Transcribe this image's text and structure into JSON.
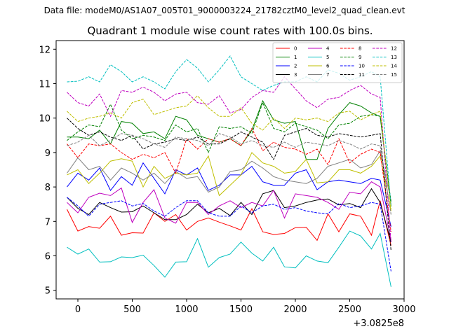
{
  "suptitle": "Data file: modeM0/AS1A07_005T01_9000003224_21782cztM0_level2_quad_clean.evt",
  "chart_data": {
    "type": "line",
    "title": "Quadrant 1 module wise count rates with 100.0s bins.",
    "x_offset_label": "+3.0825e8",
    "xlim": [
      -200,
      3000
    ],
    "ylim": [
      4.75,
      12.25
    ],
    "xticks": [
      0,
      500,
      1000,
      1500,
      2000,
      2500,
      3000
    ],
    "yticks": [
      5,
      6,
      7,
      8,
      9,
      10,
      11,
      12
    ],
    "x": [
      -100,
      0,
      100,
      200,
      300,
      400,
      500,
      600,
      700,
      800,
      900,
      1000,
      1100,
      1200,
      1300,
      1400,
      1500,
      1600,
      1700,
      1800,
      1900,
      2000,
      2100,
      2200,
      2300,
      2400,
      2500,
      2600,
      2700,
      2780,
      2880
    ],
    "legend_location": "upper right",
    "series": [
      {
        "name": "0",
        "color": "#ff0000",
        "dash": "solid",
        "values": [
          7.35,
          6.72,
          6.85,
          6.8,
          7.15,
          6.6,
          6.67,
          6.66,
          7.25,
          7.0,
          7.2,
          6.75,
          7.0,
          7.1,
          6.98,
          6.87,
          6.75,
          7.37,
          6.7,
          6.62,
          6.65,
          6.82,
          6.83,
          6.45,
          7.22,
          6.7,
          7.22,
          7.15,
          6.6,
          7.6,
          6.3
        ]
      },
      {
        "name": "1",
        "color": "#008000",
        "dash": "solid",
        "values": [
          9.45,
          9.45,
          9.4,
          9.65,
          9.25,
          9.9,
          9.85,
          9.55,
          9.6,
          9.4,
          10.05,
          9.95,
          9.5,
          9.4,
          9.3,
          9.4,
          9.2,
          9.65,
          10.5,
          9.95,
          9.85,
          9.9,
          8.8,
          8.8,
          9.7,
          10.1,
          10.45,
          10.35,
          10.15,
          10.05,
          7.45
        ]
      },
      {
        "name": "2",
        "color": "#0000ff",
        "dash": "solid",
        "values": [
          8.0,
          8.4,
          8.2,
          8.55,
          7.9,
          8.3,
          8.05,
          8.7,
          8.25,
          7.8,
          8.5,
          8.35,
          8.55,
          7.9,
          8.05,
          8.35,
          8.35,
          8.6,
          8.15,
          8.05,
          8.05,
          8.4,
          8.5,
          7.92,
          8.15,
          8.2,
          8.15,
          8.1,
          8.25,
          8.2,
          6.85
        ]
      },
      {
        "name": "3",
        "color": "#000000",
        "dash": "solid",
        "values": [
          7.7,
          7.38,
          7.2,
          7.55,
          7.4,
          7.27,
          7.28,
          7.45,
          7.25,
          7.05,
          7.05,
          7.2,
          7.5,
          7.25,
          7.38,
          7.17,
          7.55,
          7.2,
          7.8,
          7.9,
          7.4,
          7.45,
          7.55,
          7.62,
          7.65,
          7.48,
          7.52,
          7.4,
          7.95,
          7.55,
          6.4
        ]
      },
      {
        "name": "4",
        "color": "#bf00bf",
        "dash": "solid",
        "values": [
          7.55,
          7.25,
          7.7,
          7.82,
          7.75,
          7.97,
          6.97,
          7.55,
          7.92,
          7.1,
          6.95,
          7.55,
          7.55,
          7.2,
          7.45,
          7.6,
          7.4,
          7.55,
          7.45,
          7.9,
          7.1,
          7.8,
          7.75,
          7.7,
          7.55,
          7.35,
          7.85,
          7.8,
          8.15,
          8.0,
          6.45
        ]
      },
      {
        "name": "5",
        "color": "#00bfbf",
        "dash": "solid",
        "values": [
          6.25,
          6.05,
          6.2,
          5.82,
          5.83,
          5.97,
          5.95,
          6.02,
          5.72,
          5.38,
          5.82,
          5.83,
          6.5,
          5.67,
          5.95,
          6.05,
          6.4,
          6.08,
          5.85,
          6.25,
          5.68,
          5.65,
          6.0,
          5.85,
          5.8,
          6.25,
          6.72,
          6.58,
          6.2,
          6.65,
          5.1
        ]
      },
      {
        "name": "6",
        "color": "#bfbf00",
        "dash": "solid",
        "values": [
          8.35,
          8.5,
          8.1,
          8.4,
          8.75,
          8.82,
          8.75,
          8.0,
          8.6,
          8.25,
          8.4,
          8.35,
          8.4,
          8.9,
          7.75,
          8.05,
          8.35,
          9.0,
          8.7,
          8.6,
          8.4,
          8.45,
          8.8,
          8.12,
          8.15,
          8.5,
          8.5,
          8.4,
          8.6,
          8.9,
          7.3
        ]
      },
      {
        "name": "7",
        "color": "#808080",
        "dash": "solid",
        "values": [
          8.4,
          8.85,
          8.5,
          8.6,
          8.2,
          8.55,
          8.4,
          8.2,
          8.4,
          8.1,
          8.45,
          8.25,
          8.3,
          7.85,
          8.0,
          8.45,
          8.5,
          8.75,
          8.55,
          8.3,
          8.2,
          8.15,
          8.1,
          8.25,
          8.6,
          8.7,
          8.8,
          8.55,
          8.65,
          9.05,
          7.6
        ]
      },
      {
        "name": "8",
        "color": "#ff0000",
        "dash": "dashed",
        "values": [
          9.25,
          8.85,
          9.25,
          9.2,
          9.25,
          9.0,
          8.8,
          8.95,
          8.85,
          9.0,
          8.4,
          9.4,
          9.1,
          9.4,
          9.3,
          9.4,
          9.2,
          9.7,
          9.05,
          9.3,
          9.15,
          9.1,
          8.95,
          9.1,
          8.65,
          9.4,
          8.7,
          8.95,
          9.1,
          9.0,
          6.7
        ]
      },
      {
        "name": "9",
        "color": "#008000",
        "dash": "dashed",
        "values": [
          9.35,
          9.6,
          9.8,
          9.75,
          10.4,
          9.65,
          9.4,
          9.5,
          9.45,
          9.35,
          9.8,
          9.6,
          9.7,
          9.0,
          9.75,
          9.7,
          9.75,
          9.55,
          10.45,
          9.7,
          9.6,
          9.85,
          9.75,
          9.65,
          9.4,
          9.8,
          9.85,
          10.05,
          10.1,
          10.05,
          7.55
        ]
      },
      {
        "name": "10",
        "color": "#0000ff",
        "dash": "dashed",
        "values": [
          7.7,
          7.45,
          7.15,
          7.5,
          7.55,
          7.6,
          7.45,
          7.52,
          7.3,
          7.15,
          7.4,
          7.6,
          7.6,
          7.25,
          7.15,
          7.15,
          7.45,
          7.25,
          7.45,
          7.5,
          7.35,
          7.4,
          7.3,
          7.25,
          7.22,
          7.52,
          7.4,
          7.45,
          7.55,
          7.5,
          5.55
        ]
      },
      {
        "name": "11",
        "color": "#000000",
        "dash": "dashed",
        "values": [
          10.0,
          9.7,
          9.5,
          9.6,
          9.45,
          9.35,
          9.5,
          9.1,
          9.25,
          9.3,
          9.4,
          9.35,
          9.45,
          9.25,
          9.25,
          9.4,
          9.6,
          9.45,
          9.3,
          8.8,
          9.5,
          9.6,
          9.7,
          9.5,
          9.45,
          9.55,
          9.5,
          9.45,
          9.5,
          9.55,
          6.15
        ]
      },
      {
        "name": "12",
        "color": "#bf00bf",
        "dash": "dashed",
        "values": [
          10.75,
          10.45,
          10.35,
          10.7,
          10.05,
          10.8,
          10.75,
          10.9,
          10.75,
          10.5,
          10.7,
          10.75,
          10.45,
          10.4,
          10.65,
          10.15,
          10.25,
          10.6,
          10.8,
          10.75,
          11.2,
          10.85,
          10.5,
          10.3,
          10.55,
          10.6,
          10.8,
          10.95,
          10.7,
          10.6,
          6.4
        ]
      },
      {
        "name": "13",
        "color": "#00bfbf",
        "dash": "dashed",
        "values": [
          11.05,
          11.07,
          11.2,
          11.05,
          11.55,
          11.35,
          11.05,
          11.2,
          11.05,
          10.85,
          11.35,
          11.7,
          11.45,
          11.05,
          11.4,
          11.8,
          11.2,
          11.0,
          10.8,
          10.95,
          11.05,
          11.05,
          11.2,
          11.05,
          11.4,
          11.3,
          11.1,
          11.2,
          11.35,
          11.2,
          7.4
        ]
      },
      {
        "name": "14",
        "color": "#bfbf00",
        "dash": "dashed",
        "values": [
          10.2,
          9.9,
          10.0,
          10.05,
          10.15,
          10.0,
          10.45,
          10.55,
          10.1,
          10.2,
          10.3,
          10.35,
          10.65,
          10.3,
          10.05,
          10.05,
          10.3,
          9.85,
          9.65,
          10.0,
          9.7,
          10.0,
          9.95,
          10.0,
          9.9,
          10.15,
          10.2,
          9.95,
          10.1,
          10.2,
          7.35
        ]
      },
      {
        "name": "15",
        "color": "#808080",
        "dash": "dashed",
        "values": [
          9.2,
          9.3,
          9.5,
          9.2,
          9.35,
          9.55,
          9.5,
          9.4,
          9.25,
          9.15,
          9.45,
          9.4,
          9.35,
          9.2,
          9.55,
          9.45,
          9.25,
          9.35,
          9.2,
          9.15,
          9.3,
          9.15,
          9.3,
          9.25,
          9.2,
          9.35,
          9.25,
          9.1,
          9.25,
          9.2,
          7.2
        ]
      }
    ]
  }
}
